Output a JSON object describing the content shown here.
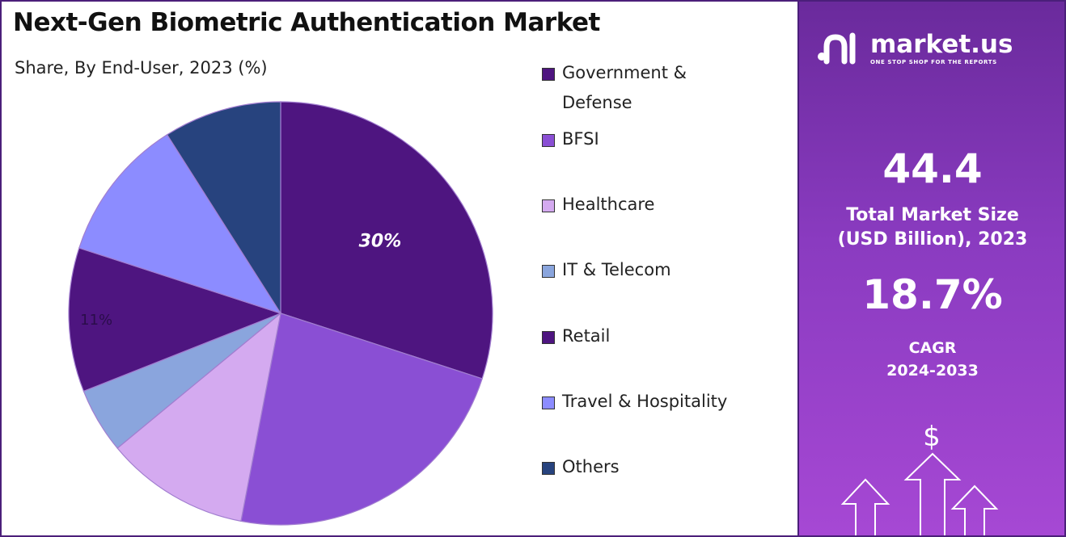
{
  "colors": {
    "government_defense": "#4e1580",
    "bfsi": "#8a4fd4",
    "healthcare": "#d4aaf0",
    "it_telecom": "#8aa5dd",
    "retail": "#4e1580",
    "travel_hospitality": "#8c8cff",
    "others": "#27437e"
  },
  "chart_data": {
    "type": "pie",
    "title": "Next-Gen Biometric Authentication Market",
    "subtitle": "Share, By End-User, 2023 (%)",
    "categories": [
      "Government & Defense",
      "BFSI",
      "Healthcare",
      "IT & Telecom",
      "Retail",
      "Travel & Hospitality",
      "Others"
    ],
    "values": [
      30,
      23,
      11,
      5,
      11,
      11,
      9
    ],
    "data_labels": [
      "30%",
      "",
      "",
      "",
      "11%",
      "",
      ""
    ],
    "legend_position": "right"
  },
  "brand": {
    "name": "market.us",
    "tagline": "ONE STOP SHOP FOR THE REPORTS",
    "logo_icon": "market-us-logo-icon"
  },
  "stats": {
    "market_size_value": "44.4",
    "market_size_label_line1": "Total Market Size",
    "market_size_label_line2": "(USD Billion), 2023",
    "cagr_value": "18.7%",
    "cagr_label_line1": "CAGR",
    "cagr_label_line2": "2024-2033",
    "dollar_symbol": "$"
  }
}
